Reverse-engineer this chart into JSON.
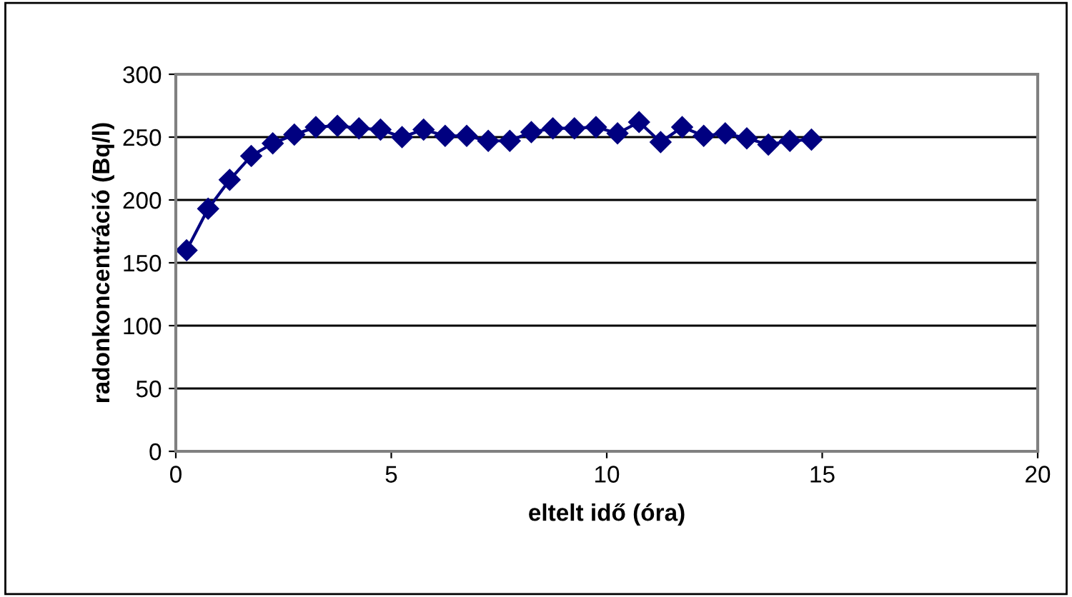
{
  "chart_data": {
    "type": "line",
    "xlabel": "eltelt idő (óra)",
    "ylabel": "radonkoncentráció (Bq/l)",
    "x": [
      0.25,
      0.75,
      1.25,
      1.75,
      2.25,
      2.75,
      3.25,
      3.75,
      4.25,
      4.75,
      5.25,
      5.75,
      6.25,
      6.75,
      7.25,
      7.75,
      8.25,
      8.75,
      9.25,
      9.75,
      10.25,
      10.75,
      11.25,
      11.75,
      12.25,
      12.75,
      13.25,
      13.75,
      14.25,
      14.75
    ],
    "series": [
      {
        "color": "#000080",
        "values": [
          160,
          193,
          216,
          235,
          245,
          252,
          258,
          259,
          257,
          256,
          250,
          256,
          251,
          251,
          247,
          247,
          254,
          257,
          257,
          258,
          253,
          262,
          246,
          258,
          251,
          253,
          249,
          244,
          247,
          248
        ]
      }
    ],
    "xlim": [
      0,
      20
    ],
    "xticks": [
      0,
      5,
      10,
      15,
      20
    ],
    "ylim": [
      0,
      300
    ],
    "yticks": [
      0,
      50,
      100,
      150,
      200,
      250,
      300
    ],
    "grid": "y",
    "marker": "diamond",
    "line_style": "solid",
    "legend": false
  }
}
